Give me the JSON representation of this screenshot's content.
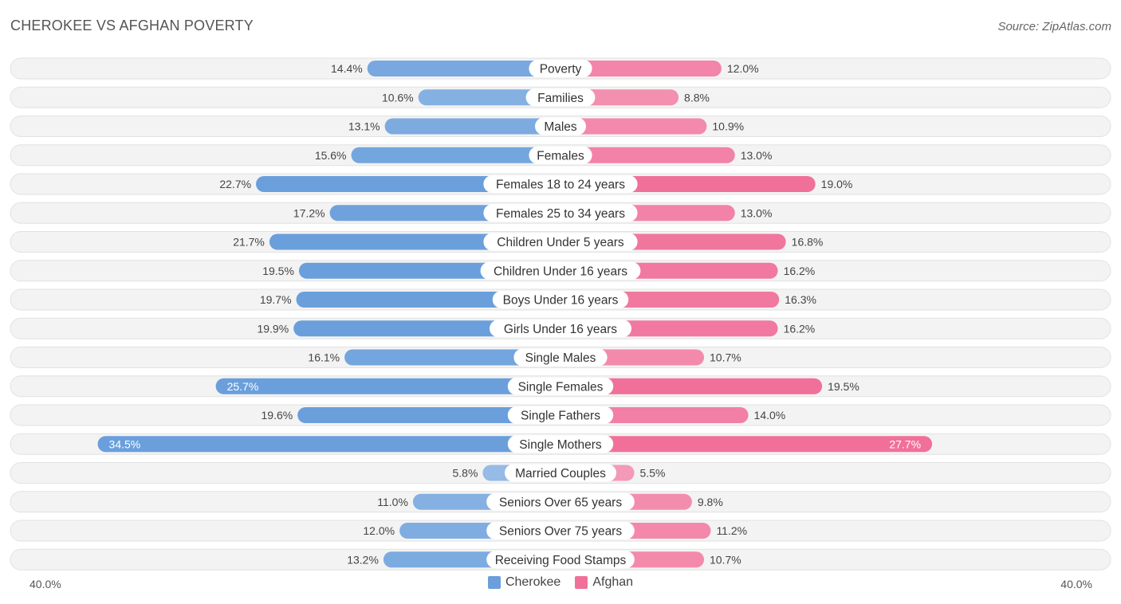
{
  "title": "CHEROKEE VS AFGHAN POVERTY",
  "source": "Source: ZipAtlas.com",
  "axis": {
    "left_label": "40.0%",
    "right_label": "40.0%"
  },
  "legend": [
    {
      "name": "Cherokee",
      "color": "#6a9fdc"
    },
    {
      "name": "Afghan",
      "color": "#f0709a"
    }
  ],
  "chart_data": {
    "type": "bar",
    "orientation": "horizontal-diverging",
    "title": "CHEROKEE VS AFGHAN POVERTY",
    "xlim": [
      -40,
      40
    ],
    "unit": "%",
    "categories": [
      "Poverty",
      "Families",
      "Males",
      "Females",
      "Females 18 to 24 years",
      "Females 25 to 34 years",
      "Children Under 5 years",
      "Children Under 16 years",
      "Boys Under 16 years",
      "Girls Under 16 years",
      "Single Males",
      "Single Females",
      "Single Fathers",
      "Single Mothers",
      "Married Couples",
      "Seniors Over 65 years",
      "Seniors Over 75 years",
      "Receiving Food Stamps"
    ],
    "series": [
      {
        "name": "Cherokee",
        "color": "#6a9fdc",
        "values": [
          14.4,
          10.6,
          13.1,
          15.6,
          22.7,
          17.2,
          21.7,
          19.5,
          19.7,
          19.9,
          16.1,
          25.7,
          19.6,
          34.5,
          5.8,
          11.0,
          12.0,
          13.2
        ],
        "labels": [
          "14.4%",
          "10.6%",
          "13.1%",
          "15.6%",
          "22.7%",
          "17.2%",
          "21.7%",
          "19.5%",
          "19.7%",
          "19.9%",
          "16.1%",
          "25.7%",
          "19.6%",
          "34.5%",
          "5.8%",
          "11.0%",
          "12.0%",
          "13.2%"
        ]
      },
      {
        "name": "Afghan",
        "color": "#f0709a",
        "values": [
          12.0,
          8.8,
          10.9,
          13.0,
          19.0,
          13.0,
          16.8,
          16.2,
          16.3,
          16.2,
          10.7,
          19.5,
          14.0,
          27.7,
          5.5,
          9.8,
          11.2,
          10.7
        ],
        "labels": [
          "12.0%",
          "8.8%",
          "10.9%",
          "13.0%",
          "19.0%",
          "13.0%",
          "16.8%",
          "16.2%",
          "16.3%",
          "16.2%",
          "10.7%",
          "19.5%",
          "14.0%",
          "27.7%",
          "5.5%",
          "9.8%",
          "11.2%",
          "10.7%"
        ]
      }
    ]
  }
}
